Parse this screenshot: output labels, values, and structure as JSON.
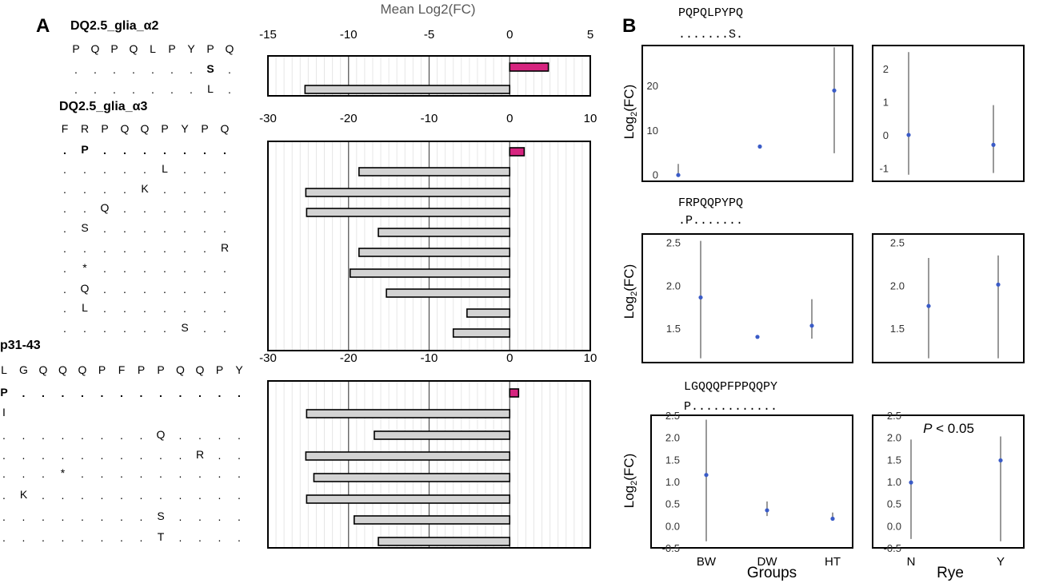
{
  "panel_labels": {
    "a": "A",
    "b": "B"
  },
  "colors": {
    "positive_bar": "#d6247f",
    "negative_bar": "#d3d3d3",
    "bw_box": "#6c6c6c",
    "dw_box": "#888888",
    "ht_box": "#d3d3d3",
    "n_box": "#3e4f6b",
    "y_box": "#19c0c6",
    "mean_dot": "#3a5bc7"
  },
  "chart_data": [
    {
      "id": "alpha2",
      "type": "bar",
      "orientation": "horizontal",
      "title": "DQ2.5_glia_α2",
      "xlabel": "Mean Log2(FC)",
      "xlim": [
        -15,
        5
      ],
      "xticks": [
        "-15",
        "-10",
        "-5",
        "0",
        "5"
      ],
      "sequence": [
        "P",
        "Q",
        "P",
        "Q",
        "L",
        "P",
        "Y",
        "P",
        "Q"
      ],
      "rows": [
        {
          "pattern": [
            ".",
            ".",
            ".",
            ".",
            ".",
            ".",
            ".",
            "S",
            "."
          ],
          "bold": [
            7
          ]
        },
        {
          "pattern": [
            ".",
            ".",
            ".",
            ".",
            ".",
            ".",
            ".",
            "L",
            "."
          ],
          "bold": []
        }
      ],
      "values": [
        2.4,
        -12.7
      ]
    },
    {
      "id": "alpha3",
      "type": "bar",
      "orientation": "horizontal",
      "title": "DQ2.5_glia_α3",
      "xlim": [
        -30,
        10
      ],
      "xticks": [
        "-30",
        "-20",
        "-10",
        "0",
        "10"
      ],
      "sequence": [
        "F",
        "R",
        "P",
        "Q",
        "Q",
        "P",
        "Y",
        "P",
        "Q"
      ],
      "rows": [
        {
          "pattern": [
            ".",
            "P",
            ".",
            ".",
            ".",
            ".",
            ".",
            ".",
            "."
          ],
          "bold": [
            0,
            1,
            2,
            3,
            4,
            5,
            6,
            7,
            8
          ]
        },
        {
          "pattern": [
            ".",
            ".",
            ".",
            ".",
            ".",
            "L",
            ".",
            ".",
            "."
          ],
          "bold": []
        },
        {
          "pattern": [
            ".",
            ".",
            ".",
            ".",
            "K",
            ".",
            ".",
            ".",
            "."
          ],
          "bold": []
        },
        {
          "pattern": [
            ".",
            ".",
            "Q",
            ".",
            ".",
            ".",
            ".",
            ".",
            "."
          ],
          "bold": []
        },
        {
          "pattern": [
            ".",
            "S",
            ".",
            ".",
            ".",
            ".",
            ".",
            ".",
            "."
          ],
          "bold": []
        },
        {
          "pattern": [
            ".",
            ".",
            ".",
            ".",
            ".",
            ".",
            ".",
            ".",
            "R"
          ],
          "bold": []
        },
        {
          "pattern": [
            ".",
            "*",
            ".",
            ".",
            ".",
            ".",
            ".",
            ".",
            "."
          ],
          "bold": []
        },
        {
          "pattern": [
            ".",
            "Q",
            ".",
            ".",
            ".",
            ".",
            ".",
            ".",
            "."
          ],
          "bold": []
        },
        {
          "pattern": [
            ".",
            "L",
            ".",
            ".",
            ".",
            ".",
            ".",
            ".",
            "."
          ],
          "bold": []
        },
        {
          "pattern": [
            ".",
            ".",
            ".",
            ".",
            ".",
            ".",
            "S",
            ".",
            "."
          ],
          "bold": []
        }
      ],
      "values": [
        1.8,
        -18.7,
        -25.3,
        -25.2,
        -16.3,
        -18.7,
        -19.8,
        -15.3,
        -5.3,
        -7.0
      ]
    },
    {
      "id": "p31_43",
      "type": "bar",
      "orientation": "horizontal",
      "title": "p31-43",
      "xlim": [
        -30,
        10
      ],
      "xticks": [
        "-30",
        "-20",
        "-10",
        "0",
        "10"
      ],
      "sequence": [
        "L",
        "G",
        "Q",
        "Q",
        "Q",
        "P",
        "F",
        "P",
        "P",
        "Q",
        "Q",
        "P",
        "Y"
      ],
      "rows": [
        {
          "pattern": [
            "P",
            ".",
            ".",
            ".",
            ".",
            ".",
            ".",
            ".",
            ".",
            ".",
            ".",
            ".",
            "."
          ],
          "bold": [
            0,
            1,
            2,
            3,
            4,
            5,
            6,
            7,
            8,
            9,
            10,
            11,
            12
          ]
        },
        {
          "pattern": [
            "I",
            " ",
            " ",
            " ",
            " ",
            " ",
            " ",
            " ",
            " ",
            " ",
            " ",
            " ",
            " "
          ],
          "bold": []
        },
        {
          "pattern": [
            ".",
            ".",
            ".",
            ".",
            ".",
            ".",
            ".",
            ".",
            "Q",
            ".",
            ".",
            ".",
            "."
          ],
          "bold": []
        },
        {
          "pattern": [
            ".",
            ".",
            ".",
            ".",
            ".",
            ".",
            ".",
            ".",
            ".",
            ".",
            "R",
            ".",
            "."
          ],
          "bold": []
        },
        {
          "pattern": [
            ".",
            ".",
            ".",
            "*",
            ".",
            ".",
            ".",
            ".",
            ".",
            ".",
            ".",
            ".",
            "."
          ],
          "bold": []
        },
        {
          "pattern": [
            ".",
            "K",
            ".",
            ".",
            ".",
            ".",
            ".",
            ".",
            ".",
            ".",
            ".",
            ".",
            "."
          ],
          "bold": []
        },
        {
          "pattern": [
            ".",
            ".",
            ".",
            ".",
            ".",
            ".",
            ".",
            ".",
            "S",
            ".",
            ".",
            ".",
            "."
          ],
          "bold": []
        },
        {
          "pattern": [
            ".",
            ".",
            ".",
            ".",
            ".",
            ".",
            ".",
            ".",
            "T",
            ".",
            ".",
            ".",
            "."
          ],
          "bold": []
        }
      ],
      "values": [
        1.1,
        -25.2,
        -16.8,
        -25.3,
        -24.3,
        -25.2,
        -19.3,
        -16.3
      ]
    },
    {
      "id": "b1_groups",
      "type": "box",
      "title_seq": "PQPQLPYPQ",
      "title_mask": ".......S.",
      "ylabel": "Log2(FC)",
      "ylim": [
        -1.5,
        29
      ],
      "yticks": [
        "0",
        "10",
        "20"
      ],
      "categories": [
        "BW",
        "DW",
        "HT"
      ],
      "boxes": [
        {
          "low": -0.5,
          "q1": -0.5,
          "median": -0.2,
          "q3": 0.7,
          "high": 2.4,
          "mean": -0.1
        },
        {
          "low": 6.2,
          "q1": 6.2,
          "median": 6.3,
          "q3": 6.4,
          "high": 6.4,
          "mean": 6.3
        },
        {
          "low": 4.8,
          "q1": 4.8,
          "median": 28.6,
          "q3": 28.6,
          "high": 28.6,
          "mean": 18.9
        }
      ]
    },
    {
      "id": "b1_rye",
      "type": "box",
      "ylim": [
        -1.4,
        2.7
      ],
      "yticks": [
        "-1",
        "0",
        "1",
        "2"
      ],
      "categories": [
        "N",
        "Y"
      ],
      "boxes": [
        {
          "low": -1.2,
          "q1": -0.85,
          "median": -0.4,
          "q3": 0.7,
          "high": 2.5,
          "mean": 0.0
        },
        {
          "low": -1.15,
          "q1": -1.0,
          "median": -0.85,
          "q3": 0.3,
          "high": 0.9,
          "mean": -0.3
        }
      ]
    },
    {
      "id": "b2_groups",
      "type": "box",
      "title_seq": "FRPQQPYPQ",
      "title_mask": ".P.......",
      "ylabel": "Log2(FC)",
      "ylim": [
        1.1,
        2.6
      ],
      "yticks": [
        "1.5",
        "2.0",
        "2.5"
      ],
      "categories": [
        "BW",
        "DW",
        "HT"
      ],
      "boxes": [
        {
          "low": 1.15,
          "q1": 1.4,
          "median": 1.9,
          "q3": 2.32,
          "high": 2.52,
          "mean": 1.86
        },
        {
          "low": 1.39,
          "q1": 1.39,
          "median": 1.4,
          "q3": 1.42,
          "high": 1.42,
          "mean": 1.4
        },
        {
          "low": 1.38,
          "q1": 1.38,
          "median": 1.42,
          "q3": 1.72,
          "high": 1.84,
          "mean": 1.53
        }
      ]
    },
    {
      "id": "b2_rye",
      "type": "box",
      "ylim": [
        1.1,
        2.6
      ],
      "yticks": [
        "1.5",
        "2.0",
        "2.5"
      ],
      "categories": [
        "N",
        "Y"
      ],
      "boxes": [
        {
          "low": 1.15,
          "q1": 1.38,
          "median": 1.85,
          "q3": 2.28,
          "high": 2.32,
          "mean": 1.76
        },
        {
          "low": 1.15,
          "q1": 1.52,
          "median": 2.3,
          "q3": 2.35,
          "high": 2.35,
          "mean": 2.01
        }
      ]
    },
    {
      "id": "b3_groups",
      "type": "box",
      "title_seq": "LGQQQPFPPQQPY",
      "title_mask": "P............",
      "ylabel": "Log2(FC)",
      "xlabel": "Groups",
      "ylim": [
        -0.5,
        2.5
      ],
      "yticks": [
        "-0.5",
        "0.0",
        "0.5",
        "1.0",
        "1.5",
        "2.0",
        "2.5"
      ],
      "categories": [
        "BW",
        "DW",
        "HT"
      ],
      "boxes": [
        {
          "low": -0.35,
          "q1": 0.6,
          "median": 1.05,
          "q3": 1.85,
          "high": 2.4,
          "mean": 1.15
        },
        {
          "low": 0.22,
          "q1": 0.27,
          "median": 0.33,
          "q3": 0.45,
          "high": 0.55,
          "mean": 0.35
        },
        {
          "low": 0.12,
          "q1": 0.12,
          "median": 0.15,
          "q3": 0.22,
          "high": 0.3,
          "mean": 0.16
        }
      ]
    },
    {
      "id": "b3_rye",
      "type": "box",
      "xlabel": "Rye",
      "annotation": {
        "p": "P",
        "rest": " < 0.05"
      },
      "ylim": [
        -0.5,
        2.5
      ],
      "yticks": [
        "-0.5",
        "0.0",
        "0.5",
        "1.0",
        "1.5",
        "2.0",
        "2.5"
      ],
      "categories": [
        "N",
        "Y"
      ],
      "boxes": [
        {
          "low": -0.3,
          "q1": 0.5,
          "median": 0.85,
          "q3": 1.85,
          "high": 1.95,
          "mean": 0.98
        },
        {
          "low": -0.35,
          "q1": 0.75,
          "median": 1.9,
          "q3": 2.0,
          "high": 2.02,
          "mean": 1.48
        }
      ]
    }
  ]
}
